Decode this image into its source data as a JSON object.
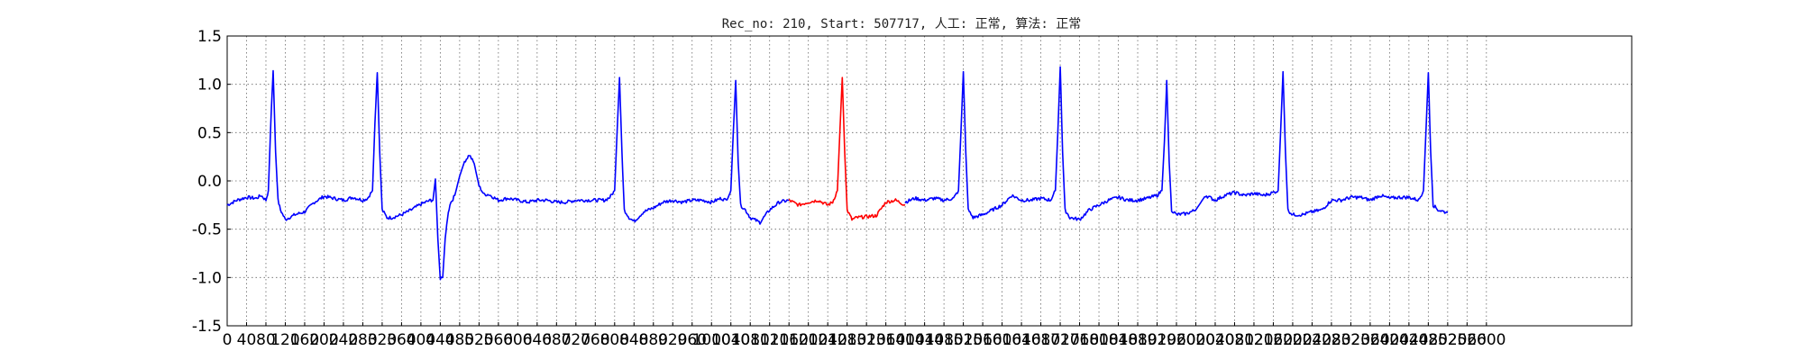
{
  "chart_data": {
    "type": "line",
    "title": "Rec_no: 210, Start: 507717, 人工: 正常, 算法: 正常",
    "xlim": [
      0,
      2900
    ],
    "ylim": [
      -1.5,
      1.5
    ],
    "y_ticks": [
      "1.5",
      "1.0",
      "0.5",
      "0.0",
      "-0.5",
      "-1.0",
      "-1.5"
    ],
    "x_tick_step": 40,
    "x_tick_labels_shown": "0 40 80 120 ... 2560 2600 (overlapping)",
    "grid": true,
    "series": [
      {
        "color": "#0000ff",
        "x": [
          0,
          20,
          40,
          60,
          70,
          80,
          85,
          90,
          95,
          100,
          105,
          110,
          120,
          140,
          160,
          180,
          200,
          220,
          240,
          260,
          280,
          290,
          300,
          305,
          310,
          315,
          320,
          330,
          340,
          360,
          380,
          400,
          420,
          425,
          430,
          435,
          440,
          445,
          450,
          455,
          460,
          470,
          480,
          490,
          500,
          510,
          520,
          530,
          540,
          560,
          580,
          600,
          620,
          640,
          660,
          680,
          700,
          720,
          740,
          760,
          780,
          790,
          800,
          805,
          810,
          815,
          820,
          830,
          840,
          860,
          880,
          900,
          920,
          940,
          960,
          980,
          1000,
          1020,
          1030,
          1040,
          1045,
          1050,
          1055,
          1060,
          1070,
          1080,
          1100,
          1120,
          1140,
          1160
        ],
        "y": [
          -0.25,
          -0.2,
          -0.17,
          -0.18,
          -0.15,
          -0.2,
          -0.1,
          0.6,
          1.14,
          0.3,
          -0.2,
          -0.3,
          -0.4,
          -0.35,
          -0.32,
          -0.22,
          -0.16,
          -0.18,
          -0.2,
          -0.17,
          -0.2,
          -0.18,
          -0.1,
          0.6,
          1.12,
          0.3,
          -0.3,
          -0.38,
          -0.38,
          -0.35,
          -0.3,
          -0.24,
          -0.2,
          -0.2,
          0.02,
          -0.6,
          -1.02,
          -1.0,
          -0.6,
          -0.38,
          -0.24,
          -0.15,
          0.05,
          0.2,
          0.27,
          0.18,
          -0.05,
          -0.14,
          -0.14,
          -0.2,
          -0.18,
          -0.2,
          -0.22,
          -0.2,
          -0.2,
          -0.22,
          -0.22,
          -0.2,
          -0.2,
          -0.2,
          -0.2,
          -0.17,
          -0.1,
          0.5,
          1.07,
          0.3,
          -0.3,
          -0.38,
          -0.42,
          -0.32,
          -0.28,
          -0.22,
          -0.2,
          -0.22,
          -0.2,
          -0.2,
          -0.22,
          -0.18,
          -0.2,
          -0.1,
          0.5,
          1.04,
          0.2,
          -0.25,
          -0.3,
          -0.38,
          -0.43,
          -0.3,
          -0.22,
          -0.2
        ]
      },
      {
        "color": "#ff0000",
        "x": [
          1160,
          1180,
          1200,
          1220,
          1240,
          1250,
          1260,
          1265,
          1270,
          1275,
          1280,
          1290,
          1300,
          1320,
          1340,
          1360,
          1380,
          1400
        ],
        "y": [
          -0.2,
          -0.25,
          -0.22,
          -0.2,
          -0.25,
          -0.22,
          -0.1,
          0.5,
          1.07,
          0.3,
          -0.3,
          -0.4,
          -0.38,
          -0.37,
          -0.36,
          -0.22,
          -0.2,
          -0.25
        ]
      },
      {
        "color": "#0000ff",
        "x": [
          1400,
          1420,
          1440,
          1460,
          1480,
          1500,
          1510,
          1515,
          1520,
          1525,
          1530,
          1540,
          1560,
          1580,
          1600,
          1620,
          1640,
          1660,
          1680,
          1700,
          1710,
          1715,
          1720,
          1725,
          1730,
          1740,
          1760,
          1780,
          1800,
          1820,
          1840,
          1860,
          1880,
          1900,
          1920,
          1930,
          1935,
          1940,
          1945,
          1950,
          1960,
          1980,
          2000,
          2020,
          2040,
          2060,
          2080,
          2100,
          2120,
          2140,
          2160,
          2170,
          2175,
          2180,
          2185,
          2190,
          2200,
          2220,
          2240,
          2260,
          2280,
          2300,
          2320,
          2340,
          2360,
          2380,
          2400,
          2420,
          2440,
          2460,
          2470,
          2475,
          2480,
          2485,
          2490,
          2500,
          2520
        ],
        "y": [
          -0.22,
          -0.18,
          -0.2,
          -0.18,
          -0.2,
          -0.18,
          -0.1,
          0.5,
          1.13,
          0.3,
          -0.3,
          -0.38,
          -0.35,
          -0.3,
          -0.25,
          -0.15,
          -0.2,
          -0.2,
          -0.18,
          -0.2,
          -0.1,
          0.5,
          1.18,
          0.3,
          -0.3,
          -0.38,
          -0.4,
          -0.3,
          -0.25,
          -0.2,
          -0.17,
          -0.2,
          -0.2,
          -0.18,
          -0.15,
          -0.1,
          0.4,
          1.04,
          0.2,
          -0.3,
          -0.35,
          -0.34,
          -0.3,
          -0.15,
          -0.2,
          -0.15,
          -0.12,
          -0.15,
          -0.13,
          -0.15,
          -0.12,
          -0.1,
          0.5,
          1.13,
          0.3,
          -0.3,
          -0.35,
          -0.35,
          -0.32,
          -0.3,
          -0.2,
          -0.2,
          -0.17,
          -0.17,
          -0.2,
          -0.15,
          -0.18,
          -0.17,
          -0.17,
          -0.2,
          -0.1,
          0.5,
          1.12,
          0.3,
          -0.25,
          -0.3,
          -0.33
        ]
      }
    ]
  }
}
